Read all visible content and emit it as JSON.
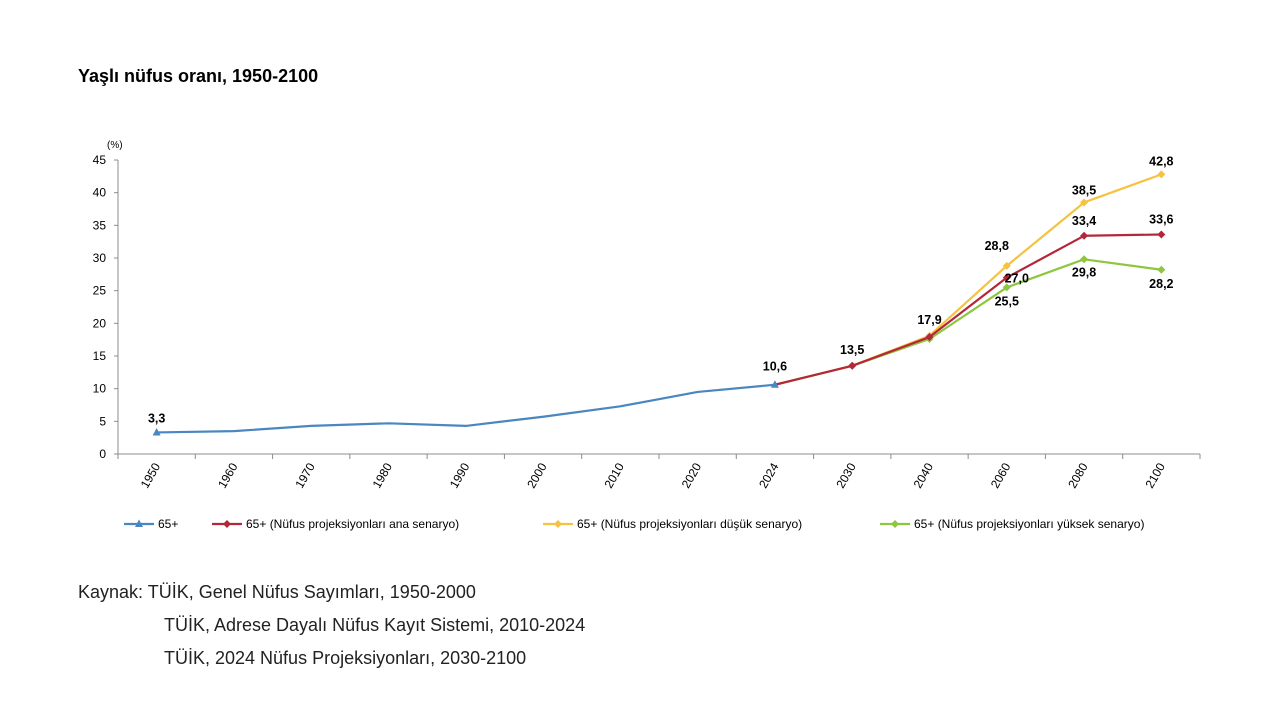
{
  "title": "Yaşlı nüfus oranı, 1950-2100",
  "source": {
    "lines": [
      "Kaynak: TÜİK, Genel Nüfus Sayımları, 1950-2000",
      "TÜİK, Adrese Dayalı Nüfus Kayıt Sistemi, 2010-2024",
      "TÜİK, 2024 Nüfus Projeksiyonları, 2030-2100"
    ]
  },
  "chart_data": {
    "type": "line",
    "ylabel": "(%)",
    "ylim": [
      0,
      45
    ],
    "yticks": [
      0,
      5,
      10,
      15,
      20,
      25,
      30,
      35,
      40,
      45
    ],
    "grid": false,
    "legend_position": "bottom",
    "categories": [
      "1950",
      "1960",
      "1970",
      "1980",
      "1990",
      "2000",
      "2010",
      "2020",
      "2024",
      "2030",
      "2040",
      "2060",
      "2080",
      "2100"
    ],
    "series": [
      {
        "name": "65+",
        "color": "#4a86c0",
        "marker": "triangle",
        "values": [
          3.3,
          3.5,
          4.3,
          4.7,
          4.3,
          5.7,
          7.3,
          9.5,
          10.6,
          null,
          null,
          null,
          null,
          null
        ],
        "labels": {
          "0": "3,3",
          "8": "10,6"
        }
      },
      {
        "name": "65+ (Nüfus projeksiyonları ana senaryo)",
        "color": "#b3273a",
        "marker": "diamond",
        "values": [
          null,
          null,
          null,
          null,
          null,
          null,
          null,
          null,
          10.6,
          13.5,
          17.9,
          27.0,
          33.4,
          33.6
        ],
        "labels": {
          "9": "13,5",
          "10": "17,9",
          "11": "27,0",
          "12": "33,4",
          "13": "33,6"
        }
      },
      {
        "name": "65+ (Nüfus projeksiyonları düşük senaryo)",
        "color": "#f5c242",
        "marker": "diamond",
        "values": [
          null,
          null,
          null,
          null,
          null,
          null,
          null,
          null,
          10.6,
          13.5,
          18.1,
          28.8,
          38.5,
          42.8
        ],
        "labels": {
          "11": "28,8",
          "12": "38,5",
          "13": "42,8"
        }
      },
      {
        "name": "65+ (Nüfus projeksiyonları yüksek senaryo)",
        "color": "#8dc63f",
        "marker": "diamond",
        "values": [
          null,
          null,
          null,
          null,
          null,
          null,
          null,
          null,
          10.6,
          13.5,
          17.6,
          25.5,
          29.8,
          28.2
        ],
        "labels": {
          "11": "25,5",
          "12": "29,8",
          "13": "28,2"
        }
      }
    ]
  }
}
